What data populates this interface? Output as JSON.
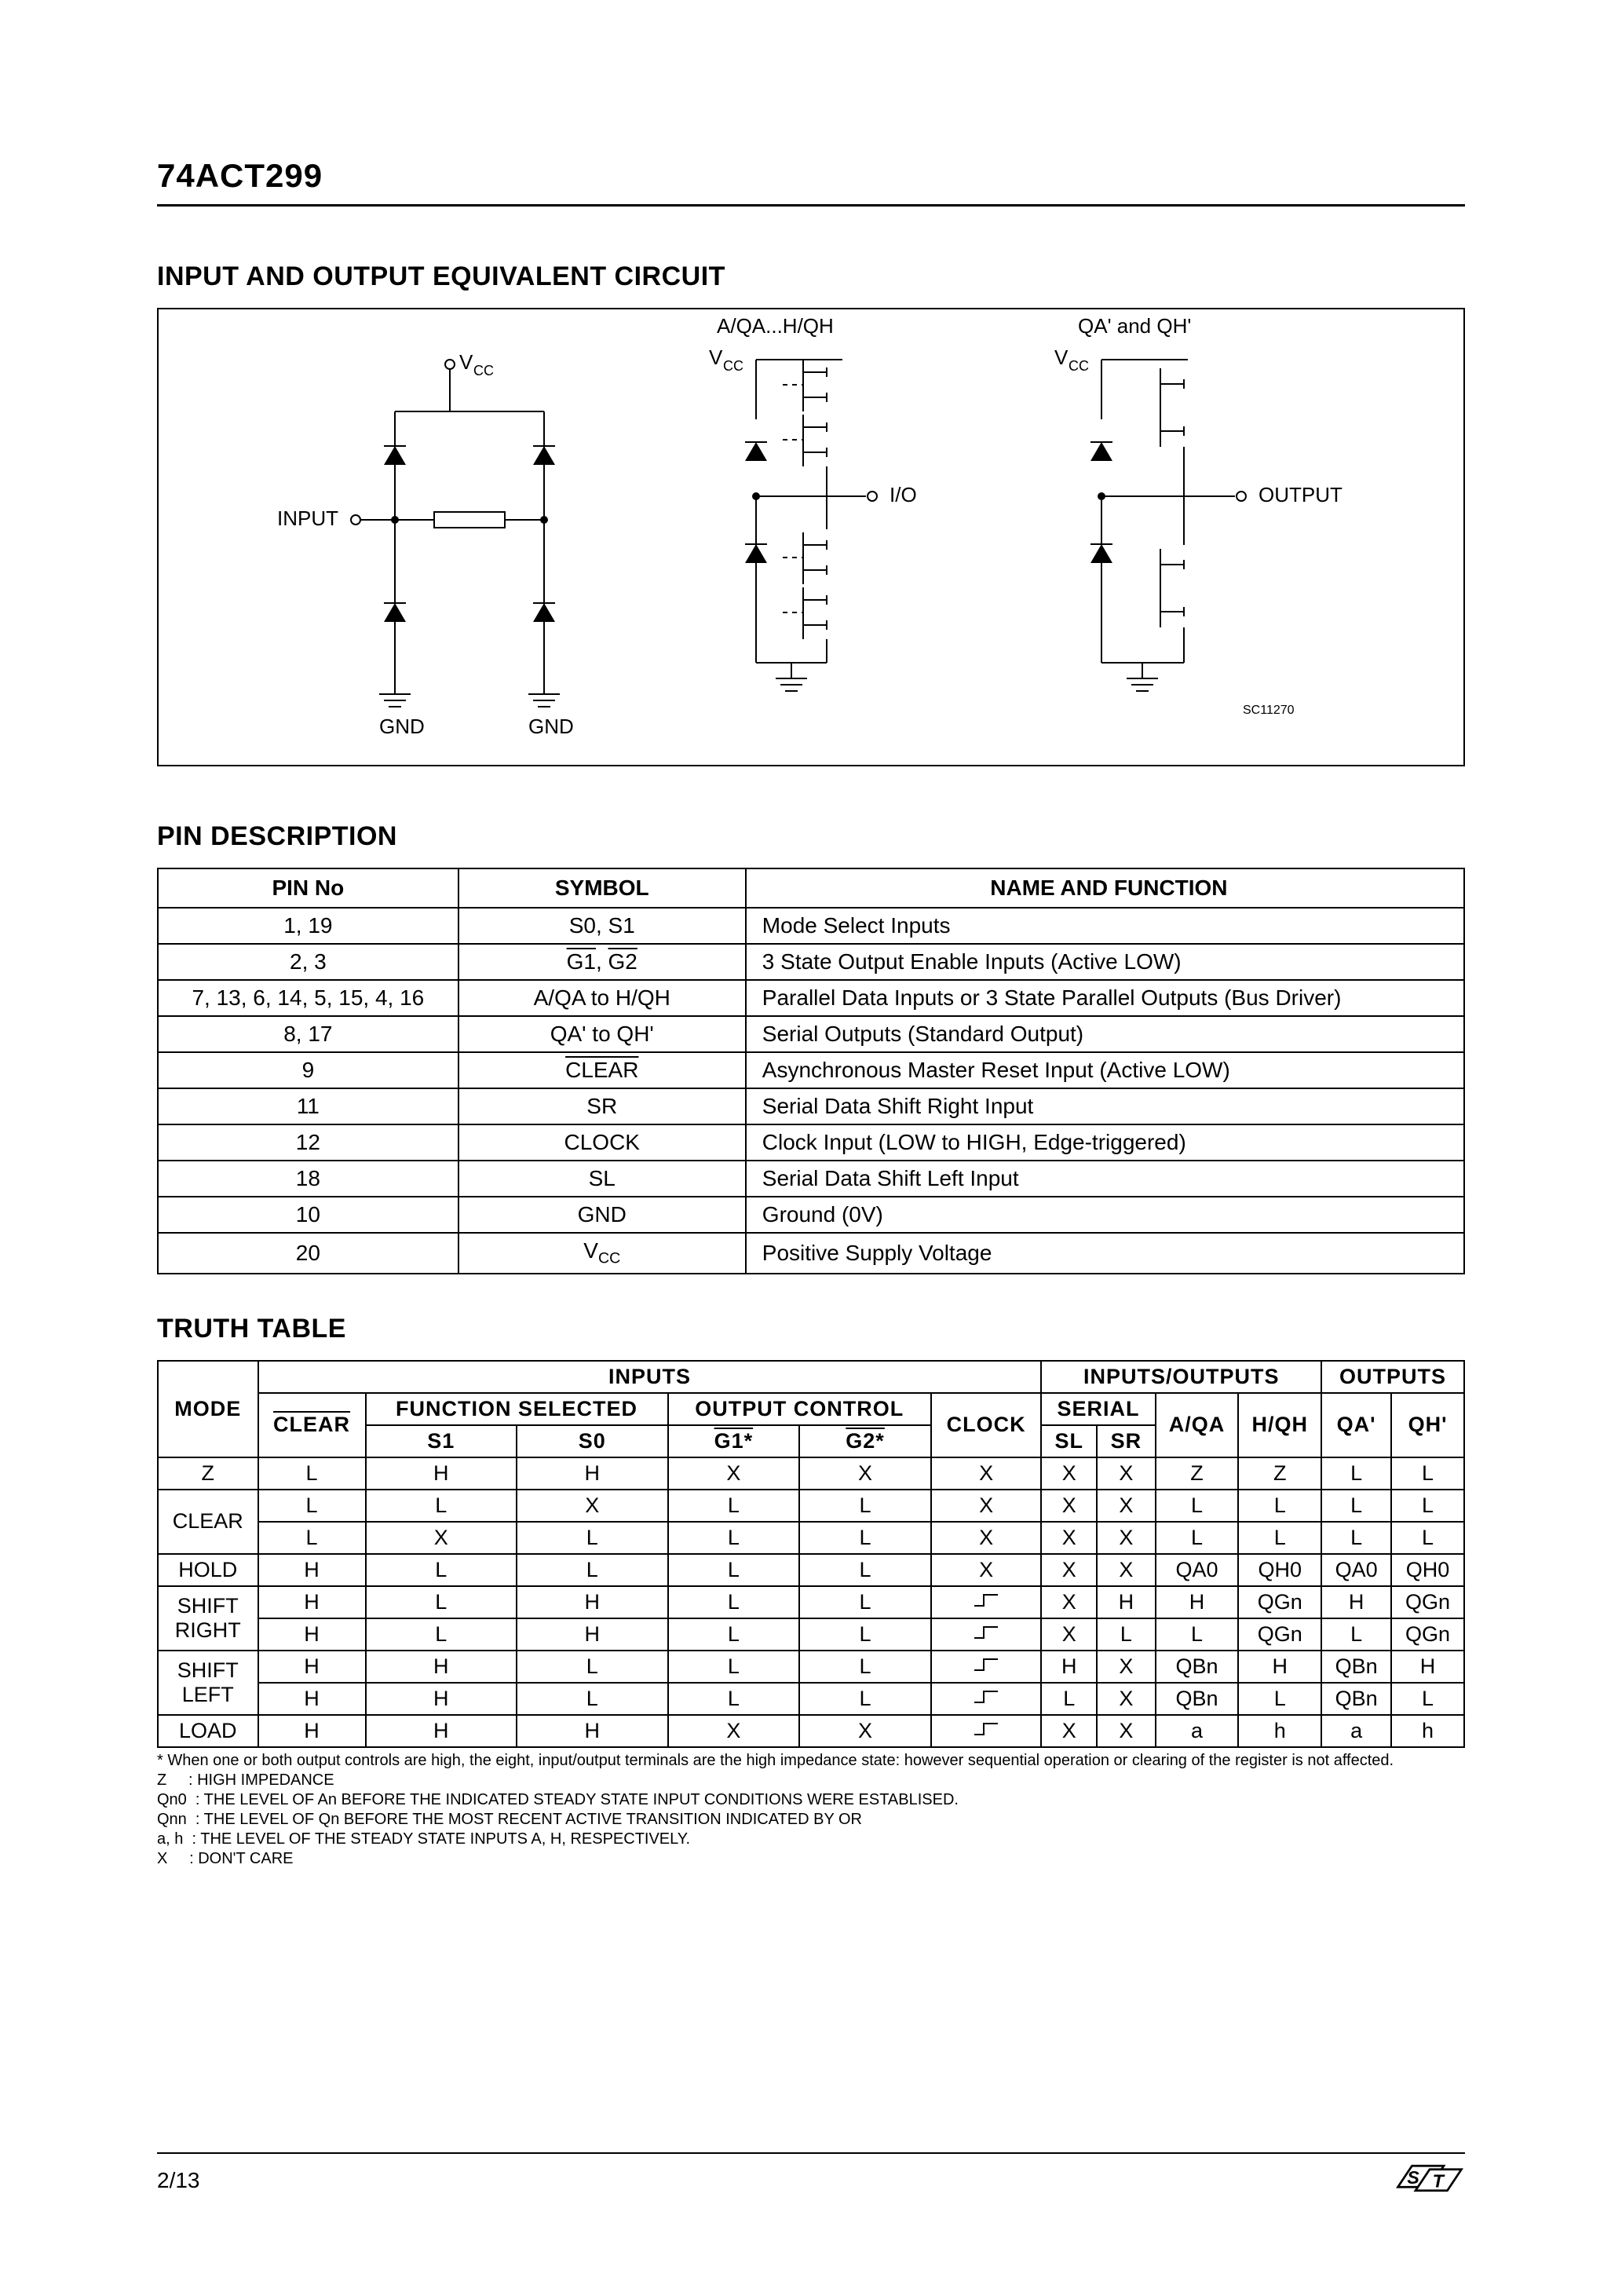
{
  "header": {
    "part_number": "74ACT299"
  },
  "sections": {
    "circuit_title": "INPUT AND OUTPUT EQUIVALENT CIRCUIT",
    "pin_desc_title": "PIN DESCRIPTION",
    "truth_title": "TRUTH TABLE"
  },
  "circuit": {
    "labels": {
      "vcc1": "V",
      "vcc_sub": "CC",
      "input": "INPUT",
      "gnd": "GND",
      "io_header": "A/QA...H/QH",
      "io": "I/O",
      "out_header": "QA' and QH'",
      "output": "OUTPUT",
      "sc_code": "SC11270"
    }
  },
  "pin_table": {
    "headers": {
      "pin_no": "PIN No",
      "symbol": "SYMBOL",
      "name": "NAME AND FUNCTION"
    },
    "rows": [
      {
        "pin": "1, 19",
        "sym_html": "S0, S1",
        "name": "Mode Select Inputs"
      },
      {
        "pin": "2, 3",
        "sym_html": "<span class='overline'>G1</span>, <span class='overline'>G2</span>",
        "name": "3 State Output Enable Inputs (Active LOW)"
      },
      {
        "pin": "7, 13, 6, 14, 5, 15, 4, 16",
        "sym_html": "A/QA to H/QH",
        "name": "Parallel Data Inputs or 3 State Parallel Outputs (Bus Driver)"
      },
      {
        "pin": "8, 17",
        "sym_html": "QA' to QH'",
        "name": "Serial Outputs (Standard Output)"
      },
      {
        "pin": "9",
        "sym_html": "<span class='overline'>CLEAR</span>",
        "name": "Asynchronous Master Reset Input (Active LOW)"
      },
      {
        "pin": "11",
        "sym_html": "SR",
        "name": "Serial Data Shift Right Input"
      },
      {
        "pin": "12",
        "sym_html": "CLOCK",
        "name": "Clock Input (LOW to HIGH, Edge-triggered)"
      },
      {
        "pin": "18",
        "sym_html": "SL",
        "name": "Serial Data Shift Left Input"
      },
      {
        "pin": "10",
        "sym_html": "GND",
        "name": "Ground (0V)"
      },
      {
        "pin": "20",
        "sym_html": "V<span class='sub'>CC</span>",
        "name": "Positive Supply Voltage"
      }
    ]
  },
  "truth_table": {
    "header_row1": {
      "mode": "MODE",
      "inputs": "INPUTS",
      "io": "INPUTS/OUTPUTS",
      "outputs": "OUTPUTS"
    },
    "header_row2": {
      "clear": "CLEAR",
      "func": "FUNCTION SELECTED",
      "outctl": "OUTPUT CONTROL",
      "clock": "CLOCK",
      "serial": "SERIAL",
      "aqa": "A/QA",
      "hqh": "H/QH",
      "qa": "QA'",
      "qh": "QH'"
    },
    "header_row3": {
      "s1": "S1",
      "s0": "S0",
      "g1": "G1*",
      "g2": "G2*",
      "sl": "SL",
      "sr": "SR"
    },
    "rows": [
      {
        "mode": "Z",
        "cells": [
          "L",
          "H",
          "H",
          "X",
          "X",
          "X",
          "X",
          "X",
          "Z",
          "Z",
          "L",
          "L"
        ],
        "clock_edge": false
      },
      {
        "mode": "CLEAR",
        "cells": [
          "L",
          "L",
          "X",
          "L",
          "L",
          "X",
          "X",
          "X",
          "L",
          "L",
          "L",
          "L"
        ],
        "clock_edge": false,
        "mode_rowspan": 2,
        "first_of_group": true
      },
      {
        "mode": "",
        "cells": [
          "L",
          "X",
          "L",
          "L",
          "L",
          "X",
          "X",
          "X",
          "L",
          "L",
          "L",
          "L"
        ],
        "clock_edge": false
      },
      {
        "mode": "HOLD",
        "cells": [
          "H",
          "L",
          "L",
          "L",
          "L",
          "X",
          "X",
          "X",
          "QA0",
          "QH0",
          "QA0",
          "QH0"
        ],
        "clock_edge": false
      },
      {
        "mode": "SHIFT RIGHT",
        "cells": [
          "H",
          "L",
          "H",
          "L",
          "L",
          "",
          "X",
          "H",
          "H",
          "QGn",
          "H",
          "QGn"
        ],
        "clock_edge": true,
        "mode_rowspan": 2,
        "first_of_group": true
      },
      {
        "mode": "",
        "cells": [
          "H",
          "L",
          "H",
          "L",
          "L",
          "",
          "X",
          "L",
          "L",
          "QGn",
          "L",
          "QGn"
        ],
        "clock_edge": true
      },
      {
        "mode": "SHIFT LEFT",
        "cells": [
          "H",
          "H",
          "L",
          "L",
          "L",
          "",
          "H",
          "X",
          "QBn",
          "H",
          "QBn",
          "H"
        ],
        "clock_edge": true,
        "mode_rowspan": 2,
        "first_of_group": true
      },
      {
        "mode": "",
        "cells": [
          "H",
          "H",
          "L",
          "L",
          "L",
          "",
          "L",
          "X",
          "QBn",
          "L",
          "QBn",
          "L"
        ],
        "clock_edge": true
      },
      {
        "mode": "LOAD",
        "cells": [
          "H",
          "H",
          "H",
          "X",
          "X",
          "",
          "X",
          "X",
          "a",
          "h",
          "a",
          "h"
        ],
        "clock_edge": true
      }
    ]
  },
  "footnotes": {
    "star": "* When one or both output controls are high, the eight, input/output terminals are the high impedance state: however sequential operation or clearing of the register is not affected.",
    "z": "Z     : HIGH IMPEDANCE",
    "qn0": "Qn0  : THE LEVEL OF An BEFORE THE INDICATED STEADY STATE INPUT CONDITIONS WERE ESTABLISED.",
    "qnn": "Qnn  : THE LEVEL OF Qn BEFORE THE MOST RECENT ACTIVE TRANSITION INDICATED BY OR",
    "ah": "a, h  : THE LEVEL OF THE STEADY STATE INPUTS A, H, RESPECTIVELY.",
    "x": "X     : DON'T CARE"
  },
  "footer": {
    "page": "2/13"
  }
}
